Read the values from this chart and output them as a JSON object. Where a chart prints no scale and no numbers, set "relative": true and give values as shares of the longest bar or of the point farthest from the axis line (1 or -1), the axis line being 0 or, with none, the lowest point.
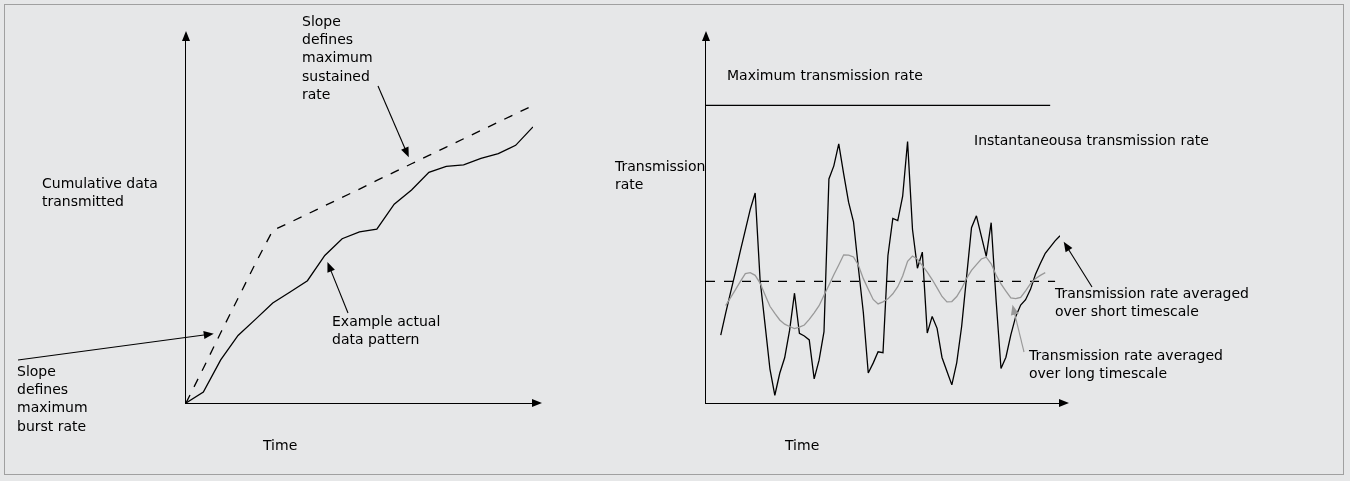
{
  "chart_data": [
    {
      "type": "line",
      "relative": true,
      "xlabel": "Time",
      "ylabel": "Cumulative data transmitted",
      "categories": [
        null,
        null,
        null,
        null,
        null,
        null,
        null,
        null,
        null,
        null,
        null,
        null,
        null,
        null,
        null,
        null,
        null,
        null,
        null,
        null,
        null
      ],
      "series": [
        {
          "color": "#000000",
          "line_style": "dashed",
          "values": [
            0,
            0.117,
            0.236,
            0.352,
            0.469,
            0.58,
            0.607,
            0.635,
            0.663,
            0.691,
            0.719,
            0.748,
            0.776,
            0.804,
            0.832,
            0.86,
            0.888,
            0.916,
            0.944,
            0.972,
            1
          ]
        },
        {
          "color": "#000000",
          "values": [
            0,
            0.037,
            0.145,
            0.227,
            0.281,
            0.336,
            0.373,
            0.411,
            0.496,
            0.552,
            0.575,
            0.584,
            0.668,
            0.716,
            0.775,
            0.795,
            0.8,
            0.822,
            0.838,
            0.866,
            0.928
          ]
        }
      ],
      "annotations": [
        "Slope defines maximum sustained rate",
        "Example actual data pattern",
        "Slope defines maximum burst rate"
      ]
    },
    {
      "type": "line",
      "relative": true,
      "xlabel": "Time",
      "ylabel": "Transmission rate",
      "categories": [
        null,
        null,
        null,
        null,
        null,
        null,
        null,
        null,
        null,
        null,
        null,
        null,
        null,
        null,
        null,
        null,
        null,
        null,
        null,
        null,
        null,
        null,
        null,
        null,
        null,
        null,
        null,
        null,
        null,
        null,
        null,
        null,
        null,
        null,
        null,
        null,
        null,
        null,
        null,
        null,
        null,
        null,
        null,
        null,
        null,
        null,
        null,
        null,
        null,
        null,
        null,
        null,
        null,
        null,
        null,
        null,
        null,
        null,
        null,
        null,
        null,
        null,
        null,
        null,
        null,
        null,
        null,
        null,
        null,
        null,
        null,
        null,
        null
      ],
      "series": [
        {
          "name": "Maximum transmission rate",
          "color": "#000000",
          "values": [
            1,
            1,
            1,
            1,
            1,
            1,
            1,
            1,
            1,
            1,
            1,
            1,
            1,
            1,
            1,
            1,
            1,
            1,
            1,
            1,
            1,
            1,
            1,
            1,
            1,
            1,
            1,
            1,
            1,
            1,
            1,
            1,
            1,
            1,
            1,
            1,
            1,
            1,
            1,
            1,
            1,
            1,
            1,
            1,
            1,
            1,
            1,
            1,
            1,
            1,
            1,
            1,
            1,
            1,
            1,
            1,
            1,
            1,
            1,
            1,
            1,
            1,
            1,
            1,
            1,
            1,
            1,
            1,
            1,
            1,
            1,
            null,
            null
          ]
        },
        {
          "color": "#000000",
          "line_style": "dashed",
          "values": [
            0.409,
            0.409,
            0.409,
            0.409,
            0.409,
            0.409,
            0.409,
            0.409,
            0.409,
            0.409,
            0.409,
            0.409,
            0.409,
            0.409,
            0.409,
            0.409,
            0.409,
            0.409,
            0.409,
            0.409,
            0.409,
            0.409,
            0.409,
            0.409,
            0.409,
            0.409,
            0.409,
            0.409,
            0.409,
            0.409,
            0.409,
            0.409,
            0.409,
            0.409,
            0.409,
            0.409,
            0.409,
            0.409,
            0.409,
            0.409,
            0.409,
            0.409,
            0.409,
            0.409,
            0.409,
            0.409,
            0.409,
            0.409,
            0.409,
            0.409,
            0.409,
            0.409,
            0.409,
            0.409,
            0.409,
            0.409,
            0.409,
            0.409,
            0.409,
            0.409,
            0.409,
            0.409,
            0.409,
            0.409,
            0.409,
            0.409,
            0.409,
            0.409,
            0.409,
            0.409,
            0.409,
            0.409,
            null
          ]
        },
        {
          "name": "Transmission rate averaged over short timescale",
          "color": "#000000",
          "values": [
            null,
            null,
            null,
            0.228,
            0.302,
            0.372,
            0.441,
            0.512,
            0.581,
            0.651,
            0.706,
            0.414,
            0.265,
            0.115,
            0.026,
            0.1,
            0.152,
            0.244,
            0.369,
            0.234,
            0.225,
            0.212,
            0.081,
            0.144,
            0.24,
            0.753,
            0.797,
            0.871,
            0.77,
            0.675,
            0.609,
            0.453,
            0.304,
            0.101,
            0.134,
            0.172,
            0.169,
            0.495,
            0.62,
            0.613,
            0.695,
            0.879,
            0.583,
            0.453,
            0.507,
            0.235,
            0.291,
            0.251,
            0.153,
            0.107,
            0.061,
            0.136,
            0.258,
            0.424,
            0.589,
            0.629,
            0.561,
            0.493,
            0.606,
            0.346,
            0.116,
            0.154,
            0.229,
            0.291,
            0.329,
            0.347,
            0.382,
            0.432,
            0.469,
            0.503,
            0.524,
            0.545,
            0.562
          ]
        },
        {
          "name": "Transmission rate averaged over long timescale",
          "color": "#999999",
          "values": [
            null,
            null,
            null,
            null,
            0.327,
            0.354,
            0.381,
            0.409,
            0.435,
            0.438,
            0.429,
            0.403,
            0.364,
            0.325,
            0.301,
            0.279,
            0.265,
            0.257,
            0.25,
            0.255,
            0.262,
            0.281,
            0.303,
            0.327,
            0.362,
            0.396,
            0.431,
            0.464,
            0.498,
            0.497,
            0.491,
            0.463,
            0.418,
            0.382,
            0.348,
            0.333,
            0.34,
            0.35,
            0.367,
            0.391,
            0.427,
            0.476,
            0.494,
            0.483,
            0.462,
            0.44,
            0.415,
            0.387,
            0.358,
            0.34,
            0.341,
            0.358,
            0.385,
            0.419,
            0.446,
            0.465,
            0.484,
            0.49,
            0.468,
            0.43,
            0.4,
            0.376,
            0.353,
            0.351,
            0.355,
            0.377,
            0.401,
            0.418,
            0.429,
            0.438,
            null,
            null,
            null
          ]
        }
      ],
      "annotations": [
        "Instantaneousa transmission rate"
      ]
    }
  ]
}
